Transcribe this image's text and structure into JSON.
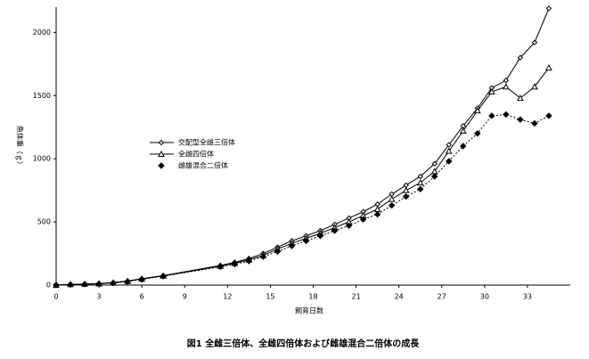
{
  "chart_data": {
    "type": "line",
    "caption": "図1 全雌三倍体、全雌四倍体および雌雄混合二倍体の成長",
    "xlabel": "飼育日数",
    "ylabel": "魚体重（ｇ）",
    "x": [
      0,
      1,
      2,
      3,
      4,
      5,
      6,
      7.5,
      11.5,
      12.5,
      13.5,
      14.5,
      15.5,
      16.5,
      17.5,
      18.5,
      19.5,
      20.5,
      21.5,
      22.5,
      23.5,
      24.5,
      25.5,
      26.5,
      27.5,
      28.5,
      29.5,
      30.5,
      31.5,
      32.5,
      33.5,
      34.5
    ],
    "series": [
      {
        "name": "交配型全雌三倍体",
        "color": "#000000",
        "marker": "open-diamond",
        "line": "solid",
        "values": [
          0,
          5,
          8,
          12,
          20,
          33,
          50,
          75,
          155,
          180,
          210,
          250,
          300,
          350,
          390,
          430,
          480,
          530,
          580,
          640,
          720,
          790,
          860,
          960,
          1110,
          1260,
          1400,
          1560,
          1620,
          1800,
          1920,
          2190
        ]
      },
      {
        "name": "全雌四倍体",
        "color": "#000000",
        "marker": "open-triangle",
        "line": "solid",
        "values": [
          0,
          5,
          8,
          11,
          18,
          30,
          48,
          72,
          150,
          172,
          200,
          235,
          285,
          330,
          370,
          410,
          455,
          500,
          550,
          600,
          680,
          750,
          810,
          900,
          1060,
          1220,
          1380,
          1530,
          1570,
          1480,
          1570,
          1720
        ]
      },
      {
        "name": "雌雄混合二倍体",
        "color": "#000000",
        "marker": "filled-diamond",
        "line": "dotted",
        "values": [
          0,
          4,
          7,
          10,
          16,
          28,
          45,
          70,
          145,
          165,
          190,
          225,
          265,
          310,
          350,
          390,
          430,
          470,
          520,
          560,
          630,
          700,
          760,
          860,
          980,
          1100,
          1200,
          1340,
          1350,
          1310,
          1280,
          1340
        ]
      }
    ],
    "xlim": [
      0,
      36
    ],
    "xticks": [
      0,
      3,
      6,
      9,
      12,
      15,
      18,
      21,
      24,
      27,
      30,
      33
    ],
    "ylim": [
      0,
      2200
    ],
    "yticks": [
      0,
      500,
      1000,
      1500,
      2000
    ]
  }
}
